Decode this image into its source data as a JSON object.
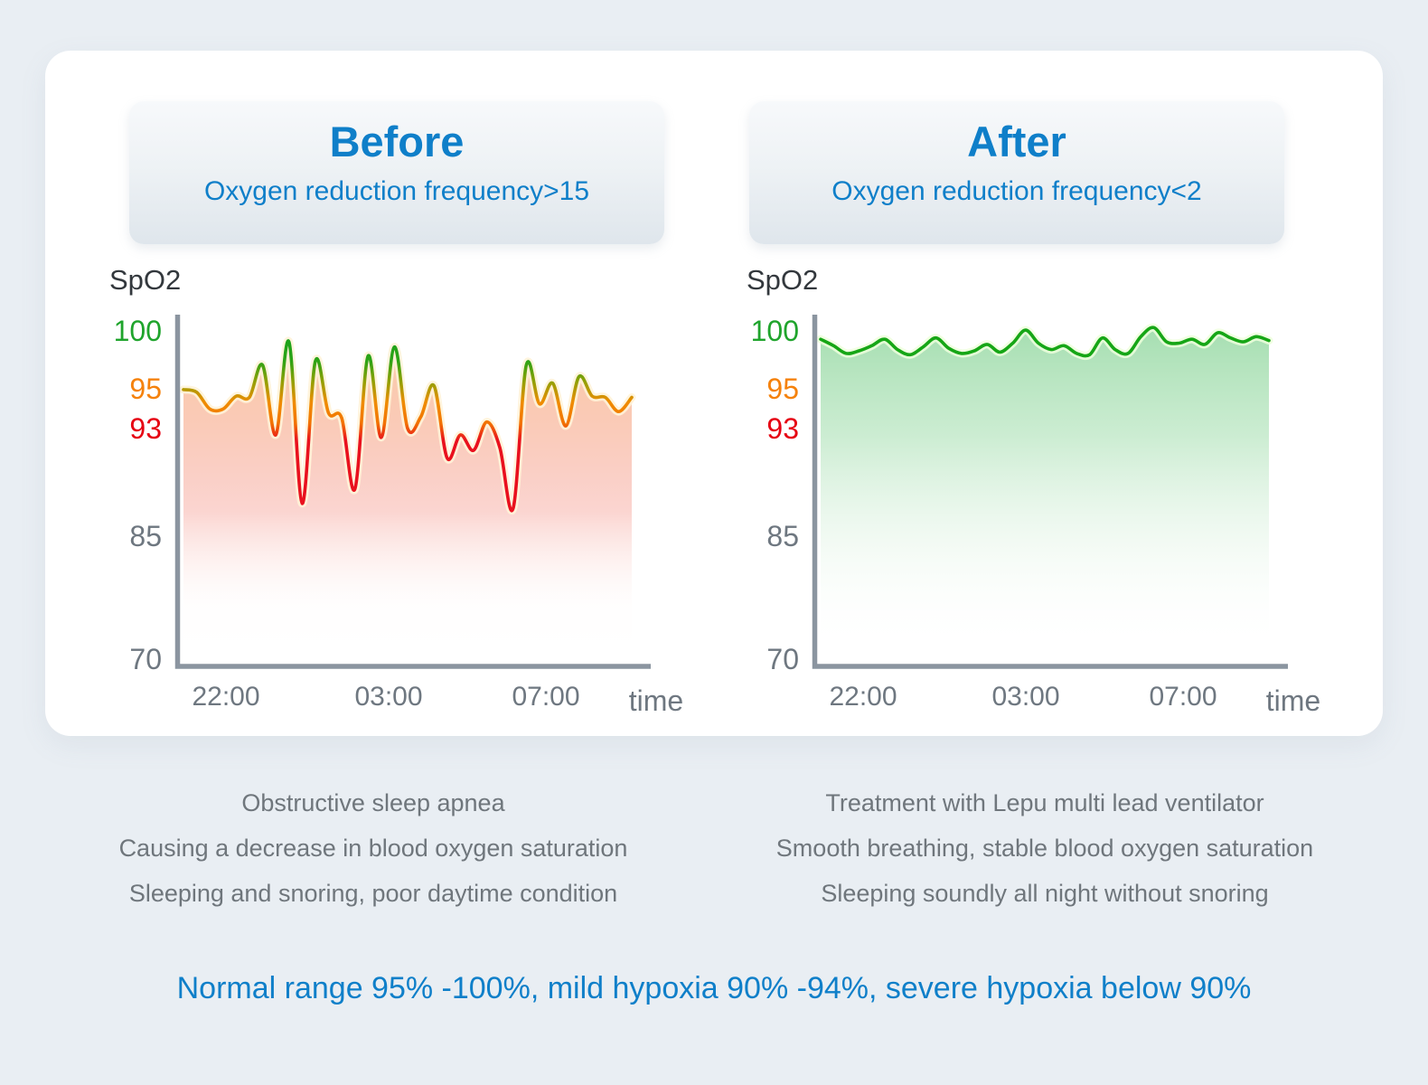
{
  "page": {
    "background_color": "#e9eef3",
    "card_color": "#ffffff",
    "accent_blue": "#0f7fc9",
    "axis_color": "#8b95a0"
  },
  "footer": {
    "note": "Normal range 95% -100%, mild hypoxia 90% -94%, severe hypoxia below 90%"
  },
  "chart_data": [
    {
      "type": "area",
      "title": "Before",
      "subtitle": "Oxygen reduction frequency>15",
      "ylabel": "SpO2",
      "xlabel": "time",
      "x_ticks": [
        "22:00",
        "03:00",
        "07:00"
      ],
      "y_ticks": [
        {
          "label": "100",
          "color": "#1fa42c"
        },
        {
          "label": "95",
          "color": "#f5820c"
        },
        {
          "label": "93",
          "color": "#e60012"
        },
        {
          "label": "85",
          "color": "#6e7780"
        },
        {
          "label": "70",
          "color": "#6e7780"
        }
      ],
      "ylim": [
        70,
        100
      ],
      "grid": false,
      "legend": "none",
      "line_color_rule": "green above ~96, orange 93-96, red below 93",
      "fill_style": "red-orange gradient fading to white",
      "values": [
        95.4,
        95.2,
        93.9,
        93.9,
        94.9,
        94.8,
        97.3,
        91.9,
        99.1,
        86.6,
        97.6,
        93.6,
        93.2,
        87.7,
        98.0,
        91.7,
        98.7,
        92.4,
        93.3,
        95.7,
        90.1,
        91.9,
        90.7,
        92.9,
        90.9,
        86.2,
        97.3,
        94.3,
        95.9,
        92.6,
        96.4,
        94.9,
        94.8,
        93.7,
        94.8
      ],
      "description": [
        "Obstructive sleep apnea",
        "Causing a decrease in blood oxygen saturation",
        "Sleeping and snoring, poor daytime condition"
      ]
    },
    {
      "type": "area",
      "title": "After",
      "subtitle": "Oxygen reduction frequency<2",
      "ylabel": "SpO2",
      "xlabel": "time",
      "x_ticks": [
        "22:00",
        "03:00",
        "07:00"
      ],
      "y_ticks": [
        {
          "label": "100",
          "color": "#1fa42c"
        },
        {
          "label": "95",
          "color": "#f5820c"
        },
        {
          "label": "93",
          "color": "#e60012"
        },
        {
          "label": "85",
          "color": "#6e7780"
        },
        {
          "label": "70",
          "color": "#6e7780"
        }
      ],
      "ylim": [
        70,
        100
      ],
      "grid": false,
      "legend": "none",
      "line_color_rule": "solid green #16a616",
      "fill_style": "green gradient fading to white",
      "values": [
        99.3,
        98.8,
        98.2,
        98.4,
        98.8,
        99.3,
        98.5,
        98.1,
        98.7,
        99.4,
        98.6,
        98.2,
        98.4,
        98.9,
        98.3,
        99.0,
        100.0,
        99.0,
        98.5,
        98.8,
        98.2,
        98.1,
        99.4,
        98.5,
        98.2,
        99.5,
        100.2,
        99.1,
        99.0,
        99.3,
        98.9,
        99.8,
        99.4,
        99.1,
        99.5,
        99.2
      ],
      "description": [
        "Treatment with Lepu multi lead ventilator",
        "Smooth breathing, stable blood oxygen saturation",
        "Sleeping soundly all night without snoring"
      ]
    }
  ]
}
